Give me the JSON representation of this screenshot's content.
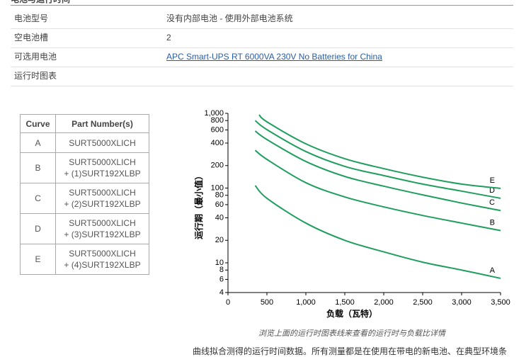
{
  "header": {
    "title": "电池与运行时间"
  },
  "specs": {
    "rows": [
      {
        "label": "电池型号",
        "value": "没有内部电池 - 使用外部电池系统"
      },
      {
        "label": "空电池槽",
        "value": "2"
      },
      {
        "label": "可选用电池",
        "value": "APC Smart-UPS RT 6000VA 230V No Batteries for China"
      },
      {
        "label": "运行时图表"
      }
    ]
  },
  "curve_table": {
    "headers": [
      "Curve",
      "Part Number(s)"
    ],
    "rows": [
      [
        "A",
        "SURT5000XLICH"
      ],
      [
        "B",
        "SURT5000XLICH\n+ (1)SURT192XLBP"
      ],
      [
        "C",
        "SURT5000XLICH\n+ (2)SURT192XLBP"
      ],
      [
        "D",
        "SURT5000XLICH\n+ (3)SURT192XLBP"
      ],
      [
        "E",
        "SURT5000XLICH\n+ (4)SURT192XLBP"
      ]
    ]
  },
  "chart_data": {
    "type": "line",
    "x_label": "负载（瓦特）",
    "y_label": "运行期（最小值）",
    "xlim": [
      0,
      3500
    ],
    "ylim": [
      4,
      1000
    ],
    "yscale": "log",
    "xticks": [
      0,
      500,
      {
        "value": 1000,
        "label": "1,000"
      },
      {
        "value": 1500,
        "label": "1,500"
      },
      {
        "value": 2000,
        "label": "2,000"
      },
      {
        "value": 2500,
        "label": "2,500"
      },
      {
        "value": 3000,
        "label": "3,000"
      },
      {
        "value": 3500,
        "label": "3,500"
      }
    ],
    "yticks": [
      4,
      6,
      8,
      10,
      20,
      40,
      60,
      80,
      100,
      200,
      400,
      600,
      800,
      {
        "value": 1000,
        "label": "1,000"
      }
    ],
    "series": [
      {
        "name": "A",
        "color": "#1f9e5e",
        "x": [
          350,
          500,
          1000,
          1500,
          2000,
          2500,
          3000,
          3500
        ],
        "values": [
          108,
          73,
          34,
          20,
          14,
          10.2,
          8,
          6.2
        ]
      },
      {
        "name": "B",
        "color": "#1f9e5e",
        "x": [
          350,
          500,
          1000,
          1500,
          2000,
          2500,
          3000,
          3500
        ],
        "values": [
          320,
          242,
          118,
          76,
          56,
          43,
          34,
          27
        ]
      },
      {
        "name": "C",
        "color": "#1f9e5e",
        "x": [
          350,
          500,
          1000,
          1500,
          2000,
          2500,
          3000,
          3500
        ],
        "values": [
          580,
          446,
          227,
          143,
          106,
          81,
          63,
          50
        ]
      },
      {
        "name": "D",
        "color": "#1f9e5e",
        "x": [
          350,
          500,
          1000,
          1500,
          2000,
          2500,
          3000,
          3500
        ],
        "values": [
          800,
          605,
          308,
          195,
          147,
          113,
          91,
          73
        ]
      },
      {
        "name": "E",
        "color": "#1f9e5e",
        "x": [
          400,
          500,
          1000,
          1500,
          2000,
          2500,
          3000,
          3500
        ],
        "values": [
          957,
          770,
          391,
          247,
          182,
          140,
          113,
          99
        ]
      }
    ]
  },
  "caption": "浏览上面的运行时图表线来查看的运行时与负载比详情",
  "note": "曲线拟合测得的运行时间数据。所有测量都是在使用在带电的新电池、在典型环境条"
}
